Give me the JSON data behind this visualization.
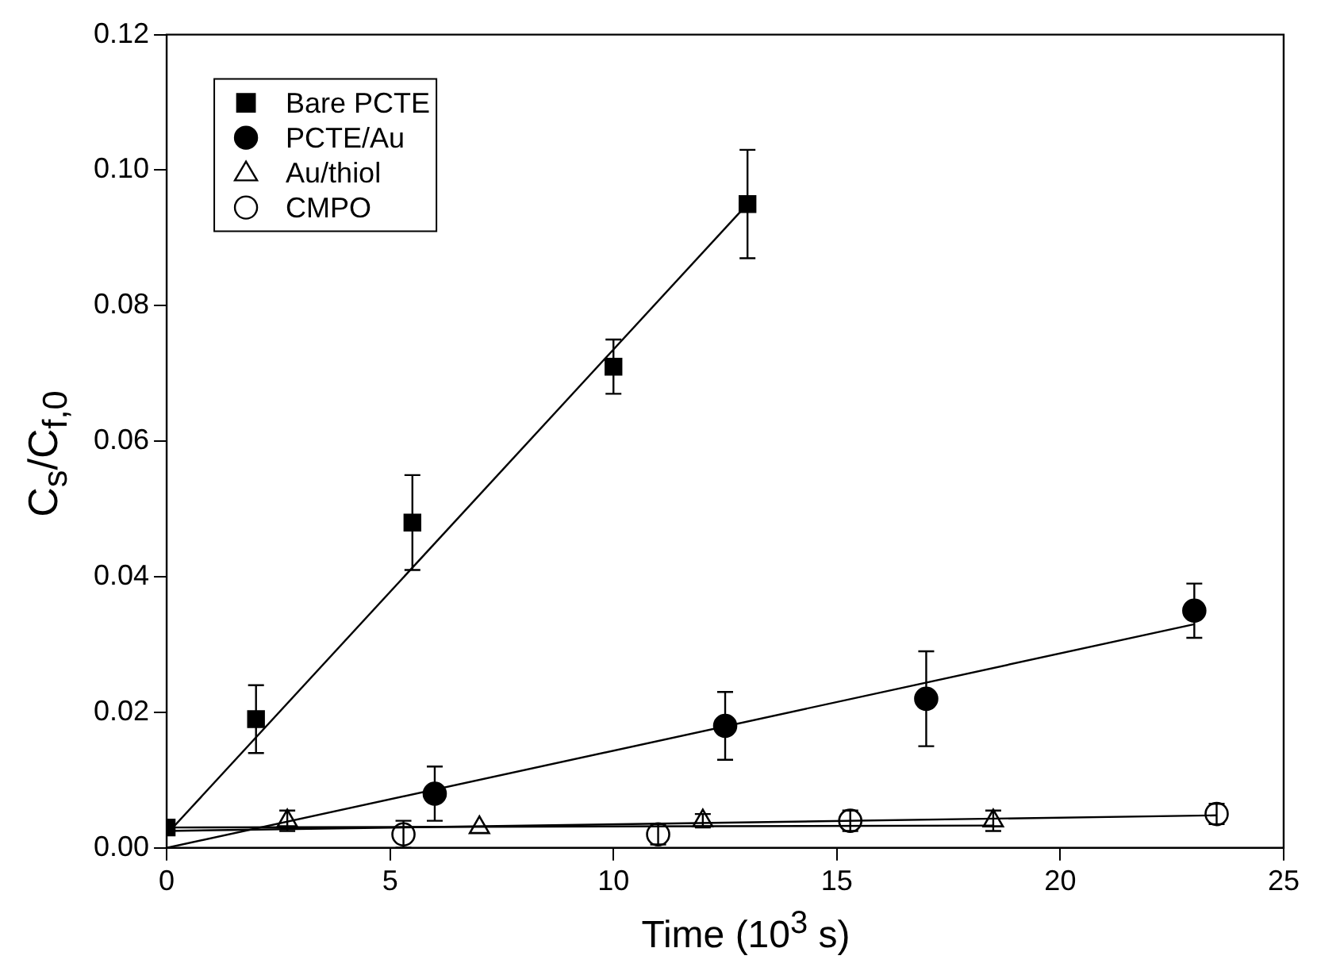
{
  "chart_data": {
    "type": "scatter",
    "xlabel": "Time (10$^{3}$ s)",
    "ylabel": "C$_{s}$/C$_{f,0}$",
    "xlim": [
      0,
      25
    ],
    "xticks": [
      0,
      5,
      10,
      15,
      20,
      25
    ],
    "ylim": [
      0,
      0.12
    ],
    "yticks": [
      {
        "value": 0,
        "label": "0.00"
      },
      0.02,
      0.04,
      0.06,
      0.08,
      {
        "value": 0.1,
        "label": "0.10"
      },
      0.12
    ],
    "grid": false,
    "legend": "top left",
    "series": [
      {
        "name": "Bare PCTE",
        "type": "scatter",
        "marker": "square",
        "color": "#000000",
        "x": [
          0,
          2,
          5.5,
          10,
          13
        ],
        "values": [
          0.003,
          0.019,
          0.048,
          0.071,
          0.095
        ],
        "errors": [
          null,
          0.005,
          0.007,
          0.004,
          0.008
        ]
      },
      {
        "name": "PCTE/Au",
        "type": "scatter",
        "marker": "circle",
        "color": "#000000",
        "x": [
          6,
          12.5,
          17,
          23
        ],
        "values": [
          0.008,
          0.018,
          0.022,
          0.035
        ],
        "errors": [
          0.004,
          0.005,
          0.007,
          0.004
        ]
      },
      {
        "name": "Au/thiol",
        "type": "scatter",
        "marker": "triangle",
        "color": "#000000",
        "x": [
          2.7,
          7,
          12,
          18.5
        ],
        "values": [
          0.004,
          0.003,
          0.004,
          0.004
        ],
        "errors": [
          0.0015,
          null,
          0.001,
          0.0015
        ]
      },
      {
        "name": "CMPO",
        "type": "scatter",
        "marker": "circle",
        "color": "#000000",
        "x": [
          5.3,
          11,
          15.3,
          23.5
        ],
        "values": [
          0.002,
          0.002,
          0.004,
          0.005
        ],
        "errors": [
          0.002,
          0.0015,
          0.0015,
          0.0015
        ]
      },
      {
        "type": "line",
        "color": "#000000",
        "x": [
          0,
          13
        ],
        "values": [
          0.002,
          0.095
        ]
      },
      {
        "type": "line",
        "color": "#000000",
        "x": [
          0,
          23
        ],
        "values": [
          0.0,
          0.033
        ]
      },
      {
        "type": "line",
        "color": "#000000",
        "x": [
          0,
          18.5
        ],
        "values": [
          0.003,
          0.0033
        ]
      },
      {
        "type": "line",
        "color": "#000000",
        "x": [
          0,
          23.5
        ],
        "values": [
          0.0025,
          0.0048
        ]
      }
    ]
  }
}
